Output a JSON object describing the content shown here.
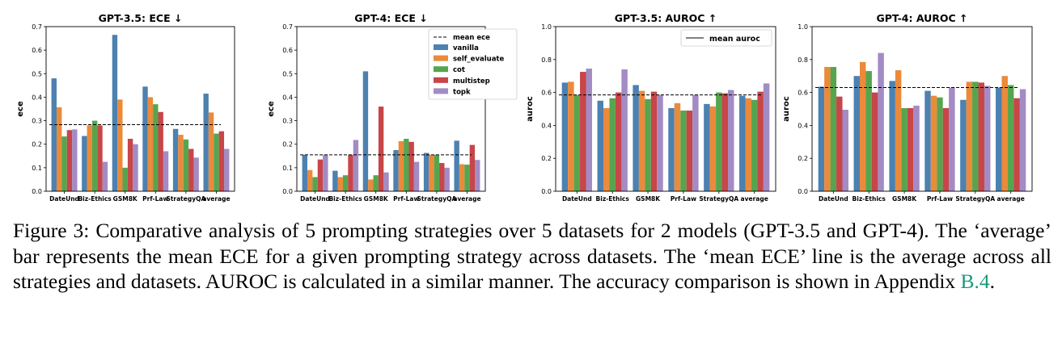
{
  "chart_data": [
    {
      "type": "bar",
      "title": "GPT-3.5: ECE ↓",
      "xlabel": "",
      "ylabel": "ece",
      "ylim": [
        0,
        0.7
      ],
      "yticks": [
        "0.0",
        "0.1",
        "0.2",
        "0.3",
        "0.4",
        "0.5",
        "0.6",
        "0.7"
      ],
      "categories": [
        "DateUnd",
        "Biz-Ethics",
        "GSM8K",
        "Prf-Law",
        "StrategyQA",
        "average"
      ],
      "series": [
        {
          "name": "vanilla",
          "color": "#4c81b0",
          "values": [
            0.48,
            0.235,
            0.665,
            0.445,
            0.265,
            0.415
          ]
        },
        {
          "name": "self_evaluate",
          "color": "#eb8a3a",
          "values": [
            0.357,
            0.28,
            0.39,
            0.4,
            0.24,
            0.335
          ]
        },
        {
          "name": "cot",
          "color": "#56a54e",
          "values": [
            0.233,
            0.3,
            0.1,
            0.37,
            0.22,
            0.245
          ]
        },
        {
          "name": "multistep",
          "color": "#c84548",
          "values": [
            0.26,
            0.28,
            0.223,
            0.337,
            0.18,
            0.255
          ]
        },
        {
          "name": "topk",
          "color": "#a38bc4",
          "values": [
            0.263,
            0.125,
            0.2,
            0.17,
            0.143,
            0.18
          ]
        }
      ],
      "ref_line": {
        "label": "mean ece",
        "value": 0.283
      },
      "legend": "none",
      "grid": false
    },
    {
      "type": "bar",
      "title": "GPT-4: ECE ↓",
      "xlabel": "",
      "ylabel": "ece",
      "ylim": [
        0,
        0.7
      ],
      "yticks": [
        "0.0",
        "0.1",
        "0.2",
        "0.3",
        "0.4",
        "0.5",
        "0.6",
        "0.7"
      ],
      "categories": [
        "DateUnd",
        "Biz-Ethics",
        "GSM8K",
        "Prf-Law",
        "StrategyQA",
        "average"
      ],
      "series": [
        {
          "name": "vanilla",
          "color": "#4c81b0",
          "values": [
            0.155,
            0.087,
            0.51,
            0.175,
            0.163,
            0.215
          ]
        },
        {
          "name": "self_evaluate",
          "color": "#eb8a3a",
          "values": [
            0.09,
            0.06,
            0.05,
            0.213,
            0.155,
            0.115
          ]
        },
        {
          "name": "cot",
          "color": "#56a54e",
          "values": [
            0.06,
            0.068,
            0.068,
            0.223,
            0.155,
            0.113
          ]
        },
        {
          "name": "multistep",
          "color": "#c84548",
          "values": [
            0.135,
            0.155,
            0.36,
            0.21,
            0.12,
            0.197
          ]
        },
        {
          "name": "topk",
          "color": "#a38bc4",
          "values": [
            0.155,
            0.218,
            0.08,
            0.125,
            0.1,
            0.133
          ]
        }
      ],
      "ref_line": {
        "label": "mean ece",
        "value": 0.155
      },
      "legend": "top-right",
      "grid": false
    },
    {
      "type": "bar",
      "title": "GPT-3.5: AUROC ↑",
      "xlabel": "",
      "ylabel": "auroc",
      "ylim": [
        0,
        1.0
      ],
      "yticks": [
        "0.0",
        "0.2",
        "0.4",
        "0.6",
        "0.8",
        "1.0"
      ],
      "categories": [
        "DateUnd",
        "Biz-Ethics",
        "GSM8K",
        "Prf-Law",
        "StrategyQA",
        "average"
      ],
      "series": [
        {
          "name": "vanilla",
          "color": "#4c81b0",
          "values": [
            0.66,
            0.55,
            0.645,
            0.505,
            0.53,
            0.58
          ]
        },
        {
          "name": "self_evaluate",
          "color": "#eb8a3a",
          "values": [
            0.665,
            0.505,
            0.61,
            0.535,
            0.515,
            0.565
          ]
        },
        {
          "name": "cot",
          "color": "#56a54e",
          "values": [
            0.585,
            0.565,
            0.56,
            0.49,
            0.6,
            0.555
          ]
        },
        {
          "name": "multistep",
          "color": "#c84548",
          "values": [
            0.725,
            0.6,
            0.605,
            0.49,
            0.595,
            0.605
          ]
        },
        {
          "name": "topk",
          "color": "#a38bc4",
          "values": [
            0.745,
            0.74,
            0.585,
            0.585,
            0.615,
            0.655
          ]
        }
      ],
      "ref_line": {
        "label": "mean auroc",
        "value": 0.585
      },
      "legend": "top-right",
      "grid": false
    },
    {
      "type": "bar",
      "title": "GPT-4: AUROC ↑",
      "xlabel": "",
      "ylabel": "auroc",
      "ylim": [
        0,
        1.0
      ],
      "yticks": [
        "0.0",
        "0.2",
        "0.4",
        "0.6",
        "0.8",
        "1.0"
      ],
      "categories": [
        "DateUnd",
        "Biz-Ethics",
        "GSM8K",
        "Prf-Law",
        "StrategyQA",
        "average"
      ],
      "series": [
        {
          "name": "vanilla",
          "color": "#4c81b0",
          "values": [
            0.635,
            0.7,
            0.67,
            0.61,
            0.555,
            0.63
          ]
        },
        {
          "name": "self_evaluate",
          "color": "#eb8a3a",
          "values": [
            0.755,
            0.785,
            0.735,
            0.58,
            0.665,
            0.7
          ]
        },
        {
          "name": "cot",
          "color": "#56a54e",
          "values": [
            0.755,
            0.73,
            0.505,
            0.57,
            0.665,
            0.645
          ]
        },
        {
          "name": "multistep",
          "color": "#c84548",
          "values": [
            0.575,
            0.6,
            0.505,
            0.505,
            0.66,
            0.565
          ]
        },
        {
          "name": "topk",
          "color": "#a38bc4",
          "values": [
            0.495,
            0.84,
            0.52,
            0.63,
            0.64,
            0.62
          ]
        }
      ],
      "ref_line": {
        "label": "",
        "value": 0.63
      },
      "legend": "none",
      "grid": false
    }
  ],
  "caption": {
    "text": "Figure 3: Comparative analysis of 5 prompting strategies over 5 datasets for 2 models (GPT-3.5 and GPT-4). The ‘average’ bar represents the mean ECE for a given prompting strategy across datasets. The ‘mean ECE’ line is the average across all strategies and datasets. AUROC is calculated in a similar manner. The accuracy comparison is shown in Appendix",
    "link": "B.4",
    "end": "."
  }
}
